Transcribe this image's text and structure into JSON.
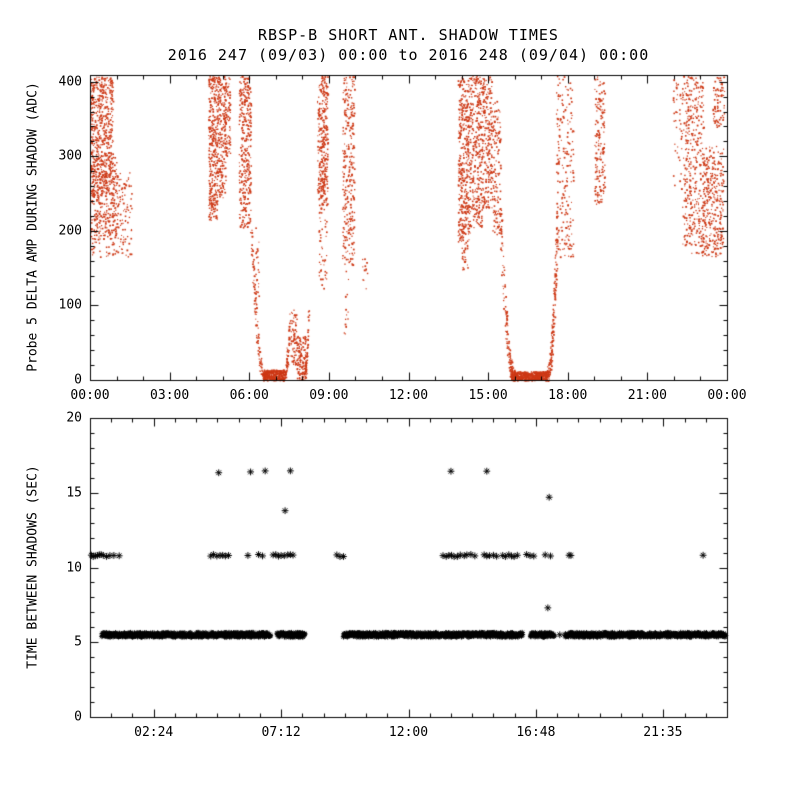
{
  "header": {
    "title": "RBSP-B SHORT ANT. SHADOW TIMES",
    "subtitle": "2016 247 (09/03) 00:00 to 2016 248 (09/04) 00:00"
  },
  "colors": {
    "background": "#ffffff",
    "axis": "#000000",
    "top_points": "#cd3815",
    "bottom_points": "#000000"
  },
  "chart_data": [
    {
      "type": "scatter",
      "panel": "top",
      "title": "RBSP-B SHORT ANT. SHADOW TIMES",
      "subtitle": "2016 247 (09/03) 00:00 to 2016 248 (09/04) 00:00",
      "xlabel": "",
      "ylabel": "Probe 5 DELTA AMP DURING SHADOW (ADC)",
      "marker": "dot",
      "color": "#cd3815",
      "grid": false,
      "xlim": [
        0,
        24
      ],
      "ylim": [
        0,
        409
      ],
      "yticks": [
        0,
        100,
        200,
        300,
        400
      ],
      "y_minor_step": 20,
      "x_minor_step": 1,
      "xticks": {
        "values": [
          0,
          3,
          6,
          9,
          12,
          15,
          18,
          21,
          24
        ],
        "labels": [
          "00:00",
          "03:00",
          "06:00",
          "09:00",
          "12:00",
          "15:00",
          "18:00",
          "21:00",
          "00:00"
        ]
      },
      "clusters_format": "[hour_start, hour_end, adc_min, adc_max, n_points] uniform scatter",
      "clusters": [
        [
          0.0,
          0.85,
          250,
          408,
          550
        ],
        [
          0.0,
          1.05,
          190,
          300,
          220
        ],
        [
          0.55,
          1.55,
          165,
          280,
          160
        ],
        [
          0.0,
          0.4,
          165,
          255,
          60
        ],
        [
          4.45,
          4.78,
          215,
          408,
          320
        ],
        [
          4.78,
          5.1,
          245,
          408,
          200
        ],
        [
          5.05,
          5.28,
          300,
          408,
          90
        ],
        [
          5.6,
          6.05,
          205,
          408,
          330
        ],
        [
          6.1,
          6.35,
          95,
          205,
          25
        ],
        [
          6.5,
          7.3,
          0,
          14,
          330
        ],
        [
          7.55,
          7.78,
          20,
          95,
          70
        ],
        [
          7.78,
          8.15,
          0,
          60,
          130
        ],
        [
          8.55,
          8.95,
          235,
          408,
          320
        ],
        [
          8.6,
          8.9,
          120,
          235,
          45
        ],
        [
          9.5,
          9.95,
          155,
          408,
          300
        ],
        [
          9.55,
          9.72,
          60,
          150,
          15
        ],
        [
          10.25,
          10.45,
          120,
          170,
          12
        ],
        [
          13.85,
          14.3,
          185,
          408,
          400
        ],
        [
          14.0,
          14.22,
          148,
          185,
          25
        ],
        [
          14.3,
          14.75,
          205,
          408,
          300
        ],
        [
          14.75,
          15.15,
          230,
          408,
          230
        ],
        [
          15.15,
          15.45,
          195,
          375,
          130
        ],
        [
          15.85,
          17.2,
          0,
          12,
          520
        ],
        [
          17.55,
          18.2,
          165,
          408,
          200
        ],
        [
          19.0,
          19.38,
          235,
          408,
          170
        ],
        [
          21.95,
          22.3,
          255,
          408,
          45
        ],
        [
          22.3,
          23.1,
          170,
          408,
          380
        ],
        [
          23.05,
          23.85,
          165,
          315,
          330
        ],
        [
          23.45,
          23.9,
          340,
          408,
          80
        ]
      ],
      "arcs_format": "[hour0, adc0, hour1, adc1, power, n_points, jitter_h, jitter_adc] shadow entry/exit curves",
      "arcs": [
        [
          6.05,
          210,
          6.55,
          6,
          2,
          110,
          0.05,
          8
        ],
        [
          7.3,
          4,
          7.52,
          88,
          2,
          70,
          0.04,
          7
        ],
        [
          8.08,
          8,
          8.22,
          92,
          2,
          45,
          0.03,
          7
        ],
        [
          15.45,
          225,
          15.95,
          6,
          2,
          140,
          0.06,
          9
        ],
        [
          17.18,
          4,
          17.6,
          218,
          2.2,
          170,
          0.05,
          9
        ]
      ]
    },
    {
      "type": "scatter",
      "panel": "bottom",
      "xlabel": "",
      "ylabel": "TIME BETWEEN SHADOWS (SEC)",
      "marker": "asterisk",
      "color": "#000000",
      "grid": false,
      "xlim": [
        0,
        24
      ],
      "ylim": [
        0,
        20
      ],
      "yticks": [
        0,
        5,
        10,
        15,
        20
      ],
      "y_minor_step": 1,
      "x_minor_step": 0.8,
      "xticks": {
        "values": [
          2.4,
          7.2,
          12.0,
          16.8,
          21.583
        ],
        "labels": [
          "02:24",
          "07:12",
          "12:00",
          "16:48",
          "21:35"
        ]
      },
      "band": {
        "value": 5.5,
        "jitter": 0.15,
        "step": 0.012,
        "segments": [
          [
            0.45,
            6.8
          ],
          [
            7.05,
            8.1
          ],
          [
            9.55,
            16.3
          ],
          [
            16.6,
            17.5
          ],
          [
            17.9,
            23.95
          ]
        ]
      },
      "rows": [
        {
          "value": 10.8,
          "times": [
            0.05,
            0.12,
            0.2,
            0.28,
            0.35,
            0.42,
            0.5,
            0.62,
            0.75,
            0.9,
            1.1,
            4.55,
            4.65,
            4.78,
            4.9,
            5.0,
            5.1,
            5.22,
            5.95,
            6.35,
            6.5,
            6.9,
            7.0,
            7.1,
            7.2,
            7.32,
            7.45,
            7.55,
            7.65,
            9.3,
            9.42,
            9.55,
            13.3,
            13.42,
            13.52,
            13.62,
            13.72,
            13.85,
            13.95,
            14.1,
            14.2,
            14.35,
            14.5,
            14.85,
            14.95,
            15.05,
            15.2,
            15.32,
            15.55,
            15.65,
            15.78,
            15.88,
            15.98,
            16.1,
            16.45,
            16.58,
            16.72,
            17.15,
            17.35,
            18.05,
            18.12,
            23.1
          ]
        },
        {
          "value": 16.4,
          "times": [
            4.85,
            6.05,
            6.6,
            7.55,
            13.6,
            14.95
          ]
        }
      ],
      "extra_points_format": "[hour, seconds]",
      "extra_points": [
        [
          7.35,
          13.8
        ],
        [
          17.3,
          14.7
        ],
        [
          17.25,
          7.3
        ],
        [
          17.7,
          5.5
        ]
      ]
    }
  ]
}
